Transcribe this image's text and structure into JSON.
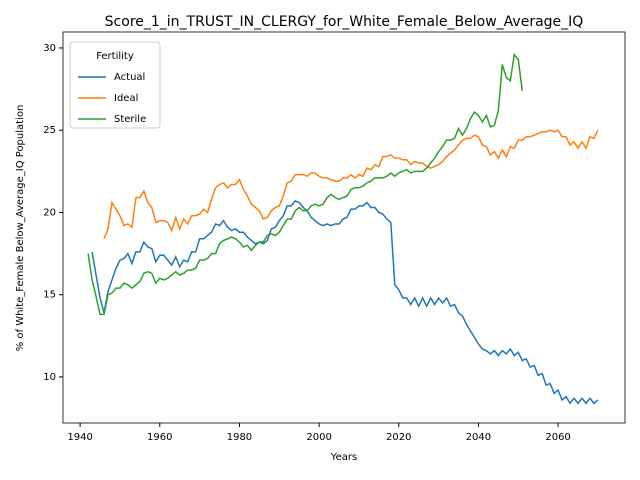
{
  "chart_data": {
    "type": "line",
    "title": "Score_1_in_TRUST_IN_CLERGY_for_White_Female_Below_Average_IQ",
    "x_label": "Years",
    "y_label": "% of White_Female Below_Average_IQ Population",
    "legend_title": "Fertility",
    "legend": "upper left",
    "xlim": [
      1935.7,
      2076.8
    ],
    "ylim": [
      7.2,
      30.97
    ],
    "xticks": [
      1940,
      1960,
      1980,
      2000,
      2020,
      2040,
      2060
    ],
    "yticks": [
      10,
      15,
      20,
      25,
      30
    ],
    "x": [
      1942,
      1943,
      1944,
      1945,
      1946,
      1947,
      1948,
      1949,
      1950,
      1951,
      1952,
      1953,
      1954,
      1955,
      1956,
      1957,
      1958,
      1959,
      1960,
      1961,
      1962,
      1963,
      1964,
      1965,
      1966,
      1967,
      1968,
      1969,
      1970,
      1971,
      1972,
      1973,
      1974,
      1975,
      1976,
      1977,
      1978,
      1979,
      1980,
      1981,
      1982,
      1983,
      1984,
      1985,
      1986,
      1987,
      1988,
      1989,
      1990,
      1991,
      1992,
      1993,
      1994,
      1995,
      1996,
      1997,
      1998,
      1999,
      2000,
      2001,
      2002,
      2003,
      2004,
      2005,
      2006,
      2007,
      2008,
      2009,
      2010,
      2011,
      2012,
      2013,
      2014,
      2015,
      2016,
      2017,
      2018,
      2019,
      2020,
      2021,
      2022,
      2023,
      2024,
      2025,
      2026,
      2027,
      2028,
      2029,
      2030,
      2031,
      2032,
      2033,
      2034,
      2035,
      2036,
      2037,
      2038,
      2039,
      2040,
      2041,
      2042,
      2043,
      2044,
      2045,
      2046,
      2047,
      2048,
      2049,
      2050,
      2051,
      2052,
      2053,
      2054,
      2055,
      2056,
      2057,
      2058,
      2059,
      2060,
      2061,
      2062,
      2063,
      2064,
      2065,
      2066,
      2067,
      2068,
      2069,
      2070
    ],
    "series": [
      {
        "name": "Actual",
        "color": "#1f77b4",
        "values": [
          null,
          17.6,
          16.2,
          14.8,
          13.9,
          15.2,
          15.9,
          16.6,
          17.1,
          17.2,
          17.5,
          16.9,
          17.6,
          17.6,
          18.2,
          17.9,
          17.8,
          17.0,
          17.4,
          17.4,
          17.1,
          16.8,
          17.3,
          16.7,
          17.1,
          17.0,
          17.6,
          17.6,
          18.4,
          18.4,
          18.6,
          18.8,
          19.3,
          19.2,
          19.5,
          19.1,
          18.9,
          19.0,
          18.8,
          18.8,
          18.5,
          18.3,
          18.1,
          18.2,
          18.1,
          18.3,
          19.0,
          19.1,
          19.5,
          19.8,
          20.4,
          20.4,
          20.7,
          20.6,
          20.3,
          20.1,
          19.7,
          19.5,
          19.3,
          19.2,
          19.3,
          19.2,
          19.3,
          19.3,
          19.6,
          19.7,
          20.2,
          20.2,
          20.4,
          20.4,
          20.6,
          20.3,
          20.3,
          20.0,
          19.9,
          19.6,
          19.4,
          15.6,
          15.3,
          14.8,
          14.8,
          14.4,
          14.8,
          14.3,
          14.8,
          14.3,
          14.8,
          14.4,
          14.8,
          14.5,
          14.8,
          14.3,
          14.4,
          13.9,
          13.7,
          13.2,
          12.8,
          12.4,
          12.0,
          11.7,
          11.6,
          11.4,
          11.6,
          11.3,
          11.6,
          11.4,
          11.7,
          11.3,
          11.5,
          11.0,
          11.1,
          10.6,
          10.7,
          10.1,
          10.2,
          9.5,
          9.6,
          9.0,
          9.2,
          8.6,
          8.8,
          8.4,
          8.7,
          8.4,
          8.7,
          8.4,
          8.7,
          8.4,
          8.6
        ]
      },
      {
        "name": "Ideal",
        "color": "#ff7f0e",
        "values": [
          null,
          null,
          null,
          null,
          18.4,
          19.0,
          20.6,
          20.2,
          19.8,
          19.2,
          19.3,
          19.1,
          20.9,
          20.9,
          21.3,
          20.6,
          20.3,
          19.4,
          19.5,
          19.5,
          19.4,
          18.9,
          19.7,
          19.0,
          19.6,
          19.3,
          19.8,
          19.8,
          19.9,
          20.2,
          20.0,
          20.8,
          21.5,
          21.7,
          21.8,
          21.5,
          21.7,
          21.7,
          22.0,
          21.4,
          21.0,
          20.5,
          20.3,
          20.1,
          19.6,
          19.7,
          20.1,
          20.3,
          20.4,
          21.0,
          21.8,
          21.9,
          22.3,
          22.3,
          22.3,
          22.2,
          22.4,
          22.4,
          22.2,
          22.1,
          22.1,
          22.0,
          21.9,
          21.9,
          22.1,
          22.1,
          22.3,
          22.1,
          22.3,
          22.2,
          22.7,
          22.6,
          22.9,
          22.8,
          23.4,
          23.4,
          23.5,
          23.3,
          23.3,
          23.2,
          23.2,
          22.9,
          23.1,
          23.0,
          23.0,
          22.8,
          22.7,
          22.8,
          22.9,
          23.1,
          23.4,
          23.6,
          23.8,
          24.1,
          24.4,
          24.5,
          24.5,
          24.7,
          24.6,
          24.1,
          24.0,
          23.5,
          23.7,
          23.3,
          23.8,
          23.4,
          24.0,
          23.9,
          24.4,
          24.4,
          24.6,
          24.6,
          24.7,
          24.8,
          24.9,
          24.9,
          25.0,
          24.9,
          25.0,
          24.6,
          24.6,
          24.1,
          24.3,
          23.9,
          24.3,
          23.9,
          24.6,
          24.5,
          25.0
        ]
      },
      {
        "name": "Sterile",
        "color": "#2ca02c",
        "values": [
          17.5,
          15.9,
          14.9,
          13.8,
          13.8,
          15.0,
          15.1,
          15.4,
          15.4,
          15.7,
          15.6,
          15.4,
          15.6,
          15.8,
          16.3,
          16.4,
          16.3,
          15.7,
          16.0,
          15.9,
          16.0,
          16.2,
          16.4,
          16.2,
          16.3,
          16.5,
          16.5,
          16.6,
          17.1,
          17.1,
          17.2,
          17.5,
          17.5,
          18.1,
          18.3,
          18.4,
          18.5,
          18.4,
          18.2,
          17.9,
          18.0,
          17.7,
          18.0,
          18.2,
          18.2,
          18.6,
          18.7,
          18.6,
          18.8,
          19.2,
          19.6,
          19.6,
          20.1,
          20.3,
          20.1,
          20.1,
          20.4,
          20.5,
          20.4,
          20.5,
          20.9,
          21.1,
          20.9,
          20.8,
          20.9,
          21.0,
          21.4,
          21.5,
          21.5,
          21.6,
          21.8,
          21.9,
          22.1,
          22.1,
          22.1,
          22.2,
          22.4,
          22.2,
          22.4,
          22.5,
          22.6,
          22.4,
          22.5,
          22.5,
          22.5,
          22.7,
          23.0,
          23.3,
          23.7,
          24.0,
          24.4,
          24.4,
          24.5,
          25.1,
          24.7,
          25.1,
          25.7,
          26.1,
          25.9,
          25.5,
          25.9,
          25.2,
          25.3,
          26.2,
          29.0,
          28.2,
          28.0,
          29.6,
          29.3,
          27.4,
          null,
          null,
          null,
          null,
          null,
          null,
          null,
          null,
          null,
          null,
          null,
          null,
          null,
          null,
          null,
          null,
          null,
          null,
          null
        ]
      }
    ]
  }
}
